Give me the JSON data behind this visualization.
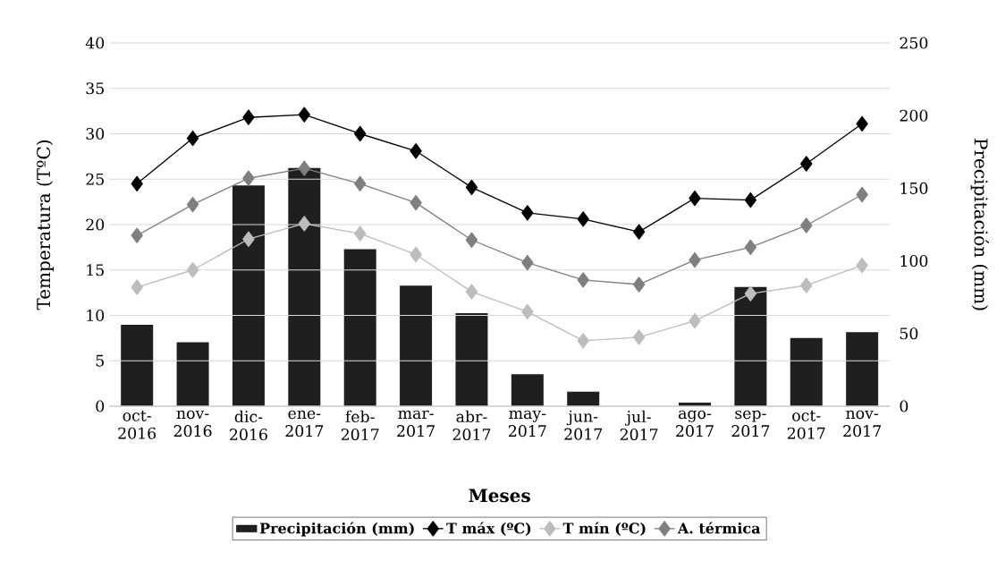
{
  "chart_data": {
    "type": "line",
    "xlabel": "Meses",
    "ylabel": "Temperatura (TºC)",
    "y2label": "Precipitación (mm)",
    "categories": [
      "oct-2016",
      "nov-2016",
      "dic-2016",
      "ene-2017",
      "feb-2017",
      "mar-2017",
      "abr-2017",
      "may-2017",
      "jun-2017",
      "jul-2017",
      "ago-2017",
      "sep-2017",
      "oct-2017",
      "nov-2017"
    ],
    "series": [
      {
        "name": "Precipitación (mm)",
        "type": "bar",
        "axis": "y2",
        "color": "#1f1f1f",
        "values": [
          56,
          44,
          152,
          164,
          108,
          83,
          64,
          22,
          10,
          0,
          2.5,
          82,
          47,
          51
        ]
      },
      {
        "name": "T máx (ºC)",
        "axis": "y",
        "color": "#000000",
        "values": [
          24.5,
          29.5,
          31.8,
          32.1,
          30.0,
          28.1,
          24.1,
          21.3,
          20.6,
          19.2,
          22.9,
          22.7,
          26.7,
          31.1
        ]
      },
      {
        "name": "T mín (ºC)",
        "axis": "y",
        "color": "#bdbdbd",
        "values": [
          13.1,
          15.0,
          18.4,
          20.1,
          19.0,
          16.7,
          12.6,
          10.4,
          7.2,
          7.6,
          9.4,
          12.4,
          13.3,
          15.5
        ]
      },
      {
        "name": "A. térmica",
        "axis": "y",
        "color": "#7f7f7f",
        "values": [
          18.8,
          22.2,
          25.1,
          26.2,
          24.5,
          22.4,
          18.3,
          15.8,
          13.9,
          13.4,
          16.1,
          17.5,
          19.9,
          23.3
        ]
      }
    ],
    "ylim": [
      0,
      40
    ],
    "yticks": [
      0,
      5,
      10,
      15,
      20,
      25,
      30,
      35,
      40
    ],
    "y2lim": [
      0,
      250
    ],
    "y2ticks": [
      0,
      50,
      100,
      150,
      200,
      250
    ],
    "grid": "y",
    "legend": "bottom",
    "marker": "diamond",
    "line_style": "solid"
  }
}
